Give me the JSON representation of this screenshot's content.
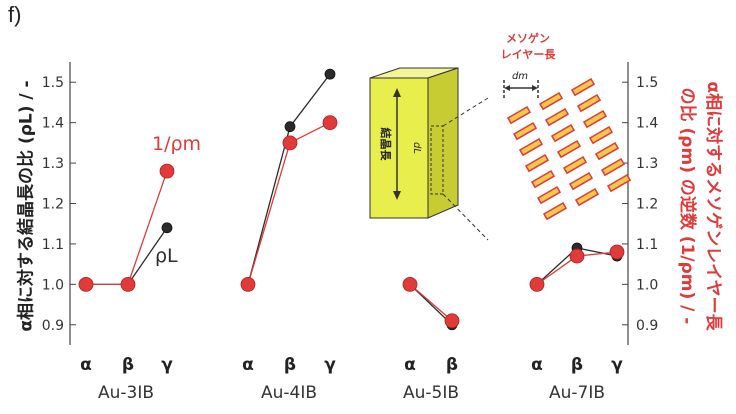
{
  "panel_label": "f)",
  "chart_data": {
    "type": "line",
    "ylabel_left": "α相に対する結晶長の比 (ρL) / -",
    "ylabel_right_line1": "α相に対するメソゲンレイヤー長",
    "ylabel_right_line2": "の比 (ρm) の逆数 (1/ρm) / -",
    "ylim": [
      0.85,
      1.55
    ],
    "yticks": [
      0.9,
      1.0,
      1.1,
      1.2,
      1.3,
      1.4,
      1.5
    ],
    "ytick_labels": [
      "0.9",
      "1.0",
      "1.1",
      "1.2",
      "1.3",
      "1.4",
      "1.5"
    ],
    "colors": {
      "rho_L": "#2b2b2b",
      "inv_rho_m": "#e03a3a"
    },
    "groups": [
      {
        "name": "Au-3IB",
        "categories": [
          "α",
          "β",
          "γ"
        ],
        "series": [
          {
            "name": "ρL",
            "values": [
              1.0,
              1.0,
              1.14
            ]
          },
          {
            "name": "1/ρm",
            "values": [
              1.0,
              1.0,
              1.28
            ]
          }
        ]
      },
      {
        "name": "Au-4IB",
        "categories": [
          "α",
          "β",
          "γ"
        ],
        "series": [
          {
            "values": [
              1.0,
              1.39,
              1.52
            ]
          },
          {
            "values": [
              1.0,
              1.35,
              1.4
            ]
          }
        ]
      },
      {
        "name": "Au-5IB",
        "categories": [
          "α",
          "β"
        ],
        "series": [
          {
            "values": [
              1.0,
              0.9
            ]
          },
          {
            "values": [
              1.0,
              0.91
            ]
          }
        ]
      },
      {
        "name": "Au-7IB",
        "categories": [
          "α",
          "β",
          "γ"
        ],
        "series": [
          {
            "values": [
              1.0,
              1.09,
              1.07
            ]
          },
          {
            "values": [
              1.0,
              1.07,
              1.08
            ]
          }
        ]
      }
    ],
    "annotations": [
      {
        "text": "1/ρm",
        "group": 0,
        "color": "#e03a3a"
      },
      {
        "text": "ρL",
        "group": 0,
        "color": "#2b2b2b"
      }
    ],
    "inset": {
      "crystal_label": "結晶長",
      "crystal_symbol": "dL",
      "mesogen_label_line1": "メソゲン",
      "mesogen_label_line2": "レイヤー長",
      "mesogen_symbol": "dm"
    }
  }
}
